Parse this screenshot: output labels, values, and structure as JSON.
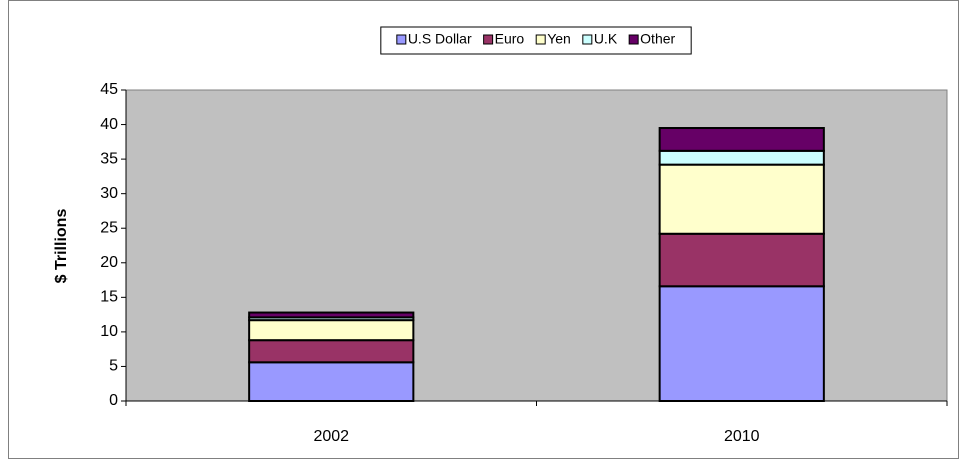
{
  "chart_data": {
    "type": "stacked_bar",
    "y_label": "$ Trillions",
    "categories": [
      "2002",
      "2010"
    ],
    "series": [
      {
        "name": "U.S Dollar",
        "color": "#9999ff",
        "values": [
          5.6,
          16.6
        ]
      },
      {
        "name": "Euro",
        "color": "#993366",
        "values": [
          3.2,
          7.6
        ]
      },
      {
        "name": "Yen",
        "color": "#ffffcc",
        "values": [
          2.9,
          10.0
        ]
      },
      {
        "name": "U.K",
        "color": "#ccffff",
        "values": [
          0.4,
          2.0
        ]
      },
      {
        "name": "Other",
        "color": "#660066",
        "values": [
          0.7,
          3.3
        ]
      }
    ],
    "ylim": [
      0,
      45
    ],
    "yticks": [
      0,
      5,
      10,
      15,
      20,
      25,
      30,
      35,
      40,
      45
    ],
    "legend": "top",
    "plot_background": "#c0c0c0"
  }
}
